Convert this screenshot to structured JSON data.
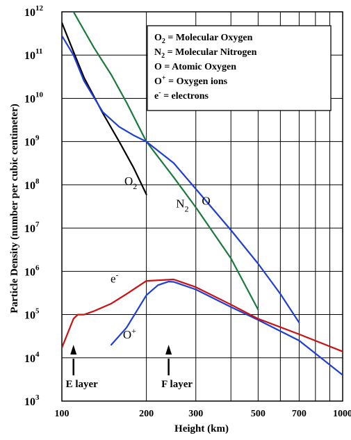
{
  "chart_data": {
    "type": "line",
    "title": "",
    "xlabel": "Height (km)",
    "ylabel": "Particle Density (number per cubic centimeter)",
    "x_scale": "log",
    "y_scale": "log",
    "xlim": [
      100,
      1000
    ],
    "ylim": [
      1000,
      1000000000000
    ],
    "x_ticks": [
      100,
      200,
      300,
      500,
      700,
      1000
    ],
    "x_tick_labels": [
      "100",
      "200",
      "300",
      "500",
      "700",
      "1000"
    ],
    "x_gridlines": [
      100,
      200,
      300,
      400,
      500,
      600,
      700,
      800,
      900,
      1000
    ],
    "y_tick_exponents": [
      "3",
      "4",
      "5",
      "6",
      "7",
      "8",
      "9",
      "10",
      "11",
      "12"
    ],
    "y_tick_base": "10",
    "grid": true,
    "legend": {
      "placement": "top-right",
      "entries": [
        {
          "symbol": "O",
          "sub": "2",
          "sup": "",
          "text": " = Molecular Oxygen"
        },
        {
          "symbol": "N",
          "sub": "2",
          "sup": "",
          "text": " = Molecular Nitrogen"
        },
        {
          "symbol": "O",
          "sub": "",
          "sup": "",
          "text": "  =  Atomic Oxygen"
        },
        {
          "symbol": "O",
          "sub": "",
          "sup": "+",
          "text": " = Oxygen ions"
        },
        {
          "symbol": "e",
          "sub": "",
          "sup": "-",
          "text": "  = electrons"
        }
      ]
    },
    "series": [
      {
        "name": "O2",
        "label_main": "O",
        "label_sub": "2",
        "label_sup": "",
        "color": "#000000",
        "label_at": [
          167,
          100000000
        ],
        "x": [
          100,
          110,
          120,
          140,
          160,
          180,
          200
        ],
        "y": [
          560000000000,
          120000000000,
          30000000000,
          4500000000,
          1000000000,
          250000000,
          60000000
        ]
      },
      {
        "name": "N2",
        "label_main": "N",
        "label_sub": "2",
        "label_sup": "",
        "color": "#1a7a3a",
        "label_at": [
          255,
          30000000
        ],
        "x": [
          110,
          130,
          150,
          170,
          200,
          250,
          300,
          400,
          500
        ],
        "y": [
          1000000000000,
          150000000000,
          35000000000,
          8000000000,
          1000000000,
          150000000,
          30000000,
          2000000,
          130000
        ]
      },
      {
        "name": "O",
        "label_main": "O",
        "label_sub": "",
        "label_sup": "",
        "color": "#1e3ed6",
        "label_at": [
          315,
          35000000
        ],
        "x": [
          100,
          110,
          120,
          140,
          160,
          180,
          200,
          250,
          300,
          400,
          500,
          600,
          700
        ],
        "y": [
          280000000000,
          100000000000,
          25000000000,
          4800000000,
          2200000000,
          1400000000,
          1000000000,
          320000000,
          80000000,
          9000000,
          1500000,
          300000,
          65000
        ]
      },
      {
        "name": "O+",
        "label_main": "O",
        "label_sub": "",
        "label_sup": "+",
        "color": "#1e3ed6",
        "label_at": [
          165,
          28000
        ],
        "x": [
          150,
          170,
          200,
          220,
          240,
          250,
          300,
          400,
          500,
          700,
          1000
        ],
        "y": [
          20000,
          50000,
          280000,
          480000,
          580000,
          570000,
          380000,
          150000,
          75000,
          25000,
          4000
        ]
      },
      {
        "name": "electrons",
        "label_main": "e",
        "label_sub": "",
        "label_sup": "-",
        "color": "#cc1010",
        "label_at": [
          149,
          550000
        ],
        "x": [
          100,
          110,
          114,
          120,
          130,
          150,
          170,
          200,
          250,
          300,
          400,
          500,
          700,
          1000
        ],
        "y": [
          17000,
          80000,
          100000,
          100000,
          120000,
          180000,
          300000,
          600000,
          650000,
          430000,
          170000,
          80000,
          35000,
          14000
        ]
      }
    ],
    "annotations": [
      {
        "label": "E layer",
        "x": 110
      },
      {
        "label": "F layer",
        "x": 240
      }
    ]
  }
}
